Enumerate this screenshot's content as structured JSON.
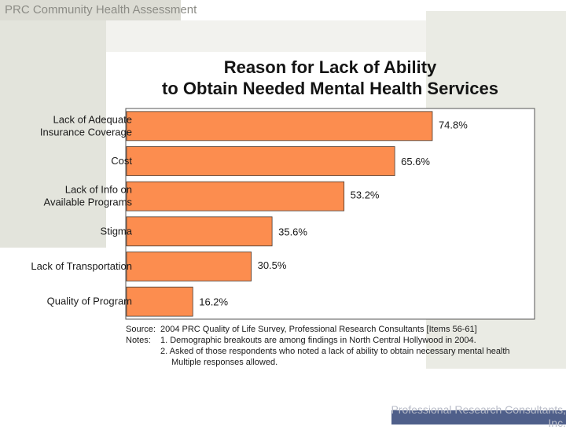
{
  "header": {
    "title": "PRC Community Health Assessment"
  },
  "footer": {
    "text": "Professional Research Consultants, Inc."
  },
  "colors": {
    "bar": "#fc8d4f",
    "bar_stroke": "#4a3a30",
    "plot_border": "#555555"
  },
  "chart_data": {
    "type": "bar",
    "orientation": "horizontal",
    "title": [
      "Reason for Lack of Ability",
      "to Obtain Needed Mental Health Services"
    ],
    "categories": [
      [
        "Lack of Adequate",
        "Insurance Coverage"
      ],
      [
        "Cost"
      ],
      [
        "Lack of Info on",
        "Available Programs"
      ],
      [
        "Stigma"
      ],
      [
        "Lack of Transportation"
      ],
      [
        "Quality of Program"
      ]
    ],
    "values": [
      74.8,
      65.6,
      53.2,
      35.6,
      30.5,
      16.2
    ],
    "value_labels": [
      "74.8%",
      "65.6%",
      "53.2%",
      "35.6%",
      "30.5%",
      "16.2%"
    ],
    "xlim": [
      0,
      100
    ],
    "xlabel": "",
    "ylabel": "",
    "grid": false,
    "legend": "none"
  },
  "notes": {
    "source_label": "Source:",
    "source_text": "2004 PRC Quality of Life Survey, Professional Research Consultants [Items 56-61]",
    "notes_label": "Notes:",
    "note1": "1. Demographic breakouts are among findings in North Central Hollywood in 2004.",
    "note2": "2. Asked of those respondents who noted a lack of ability to obtain necessary mental health",
    "note2_cont": "Multiple responses allowed."
  }
}
